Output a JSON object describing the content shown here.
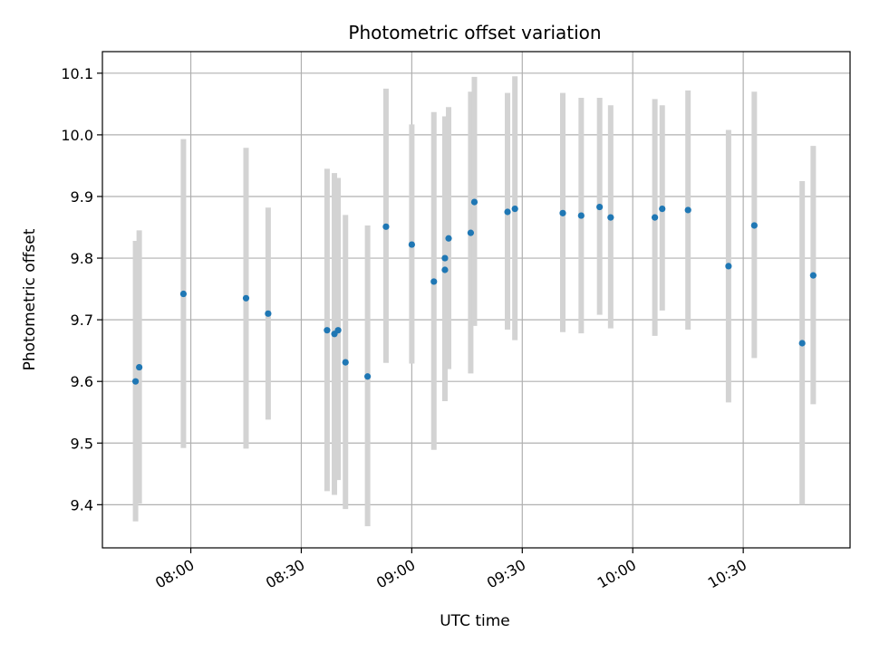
{
  "chart_data": {
    "type": "scatter",
    "title": "Photometric offset variation",
    "xlabel": "UTC time",
    "ylabel": "Photometric offset",
    "x_ticks": [
      "08:00",
      "08:30",
      "09:00",
      "09:30",
      "10:00",
      "10:30"
    ],
    "y_ticks": [
      "9.4",
      "9.5",
      "9.6",
      "9.7",
      "9.8",
      "9.9",
      "10.0",
      "10.1"
    ],
    "xlim": [
      "07:36",
      "10:59"
    ],
    "ylim": [
      9.33,
      10.135
    ],
    "grid": true,
    "legend": "none",
    "series": [
      {
        "values": [
          {
            "x": "07:45",
            "y": 9.6,
            "low": 9.373,
            "high": 9.828
          },
          {
            "x": "07:46",
            "y": 9.623,
            "low": 9.402,
            "high": 9.845
          },
          {
            "x": "07:58",
            "y": 9.742,
            "low": 9.492,
            "high": 9.993
          },
          {
            "x": "08:15",
            "y": 9.735,
            "low": 9.491,
            "high": 9.979
          },
          {
            "x": "08:21",
            "y": 9.71,
            "low": 9.538,
            "high": 9.882
          },
          {
            "x": "08:37",
            "y": 9.683,
            "low": 9.422,
            "high": 9.945
          },
          {
            "x": "08:39",
            "y": 9.677,
            "low": 9.416,
            "high": 9.938
          },
          {
            "x": "08:40",
            "y": 9.683,
            "low": 9.44,
            "high": 9.93
          },
          {
            "x": "08:42",
            "y": 9.631,
            "low": 9.393,
            "high": 9.87
          },
          {
            "x": "08:48",
            "y": 9.608,
            "low": 9.365,
            "high": 9.853
          },
          {
            "x": "08:53",
            "y": 9.851,
            "low": 9.63,
            "high": 10.075
          },
          {
            "x": "09:00",
            "y": 9.822,
            "low": 9.629,
            "high": 10.017
          },
          {
            "x": "09:06",
            "y": 9.762,
            "low": 9.489,
            "high": 10.037
          },
          {
            "x": "09:09",
            "y": 9.8,
            "low": 9.57,
            "high": 10.03
          },
          {
            "x": "09:09",
            "y": 9.781,
            "low": 9.568,
            "high": 9.995
          },
          {
            "x": "09:10",
            "y": 9.832,
            "low": 9.62,
            "high": 10.045
          },
          {
            "x": "09:16",
            "y": 9.841,
            "low": 9.613,
            "high": 10.07
          },
          {
            "x": "09:17",
            "y": 9.891,
            "low": 9.69,
            "high": 10.094
          },
          {
            "x": "09:26",
            "y": 9.875,
            "low": 9.684,
            "high": 10.068
          },
          {
            "x": "09:28",
            "y": 9.88,
            "low": 9.667,
            "high": 10.095
          },
          {
            "x": "09:41",
            "y": 9.873,
            "low": 9.68,
            "high": 10.068
          },
          {
            "x": "09:46",
            "y": 9.869,
            "low": 9.678,
            "high": 10.06
          },
          {
            "x": "09:51",
            "y": 9.883,
            "low": 9.708,
            "high": 10.06
          },
          {
            "x": "09:54",
            "y": 9.866,
            "low": 9.686,
            "high": 10.048
          },
          {
            "x": "10:06",
            "y": 9.866,
            "low": 9.674,
            "high": 10.058
          },
          {
            "x": "10:08",
            "y": 9.88,
            "low": 9.715,
            "high": 10.048
          },
          {
            "x": "10:15",
            "y": 9.878,
            "low": 9.684,
            "high": 10.072
          },
          {
            "x": "10:26",
            "y": 9.787,
            "low": 9.566,
            "high": 10.008
          },
          {
            "x": "10:33",
            "y": 9.853,
            "low": 9.638,
            "high": 10.07
          },
          {
            "x": "10:46",
            "y": 9.662,
            "low": 9.4,
            "high": 9.925
          },
          {
            "x": "10:49",
            "y": 9.772,
            "low": 9.563,
            "high": 9.982
          }
        ]
      }
    ],
    "colors": {
      "points": "#1f77b4",
      "errorbars": "#d3d3d3",
      "grid": "#b0b0b0",
      "axes": "#000000"
    }
  }
}
